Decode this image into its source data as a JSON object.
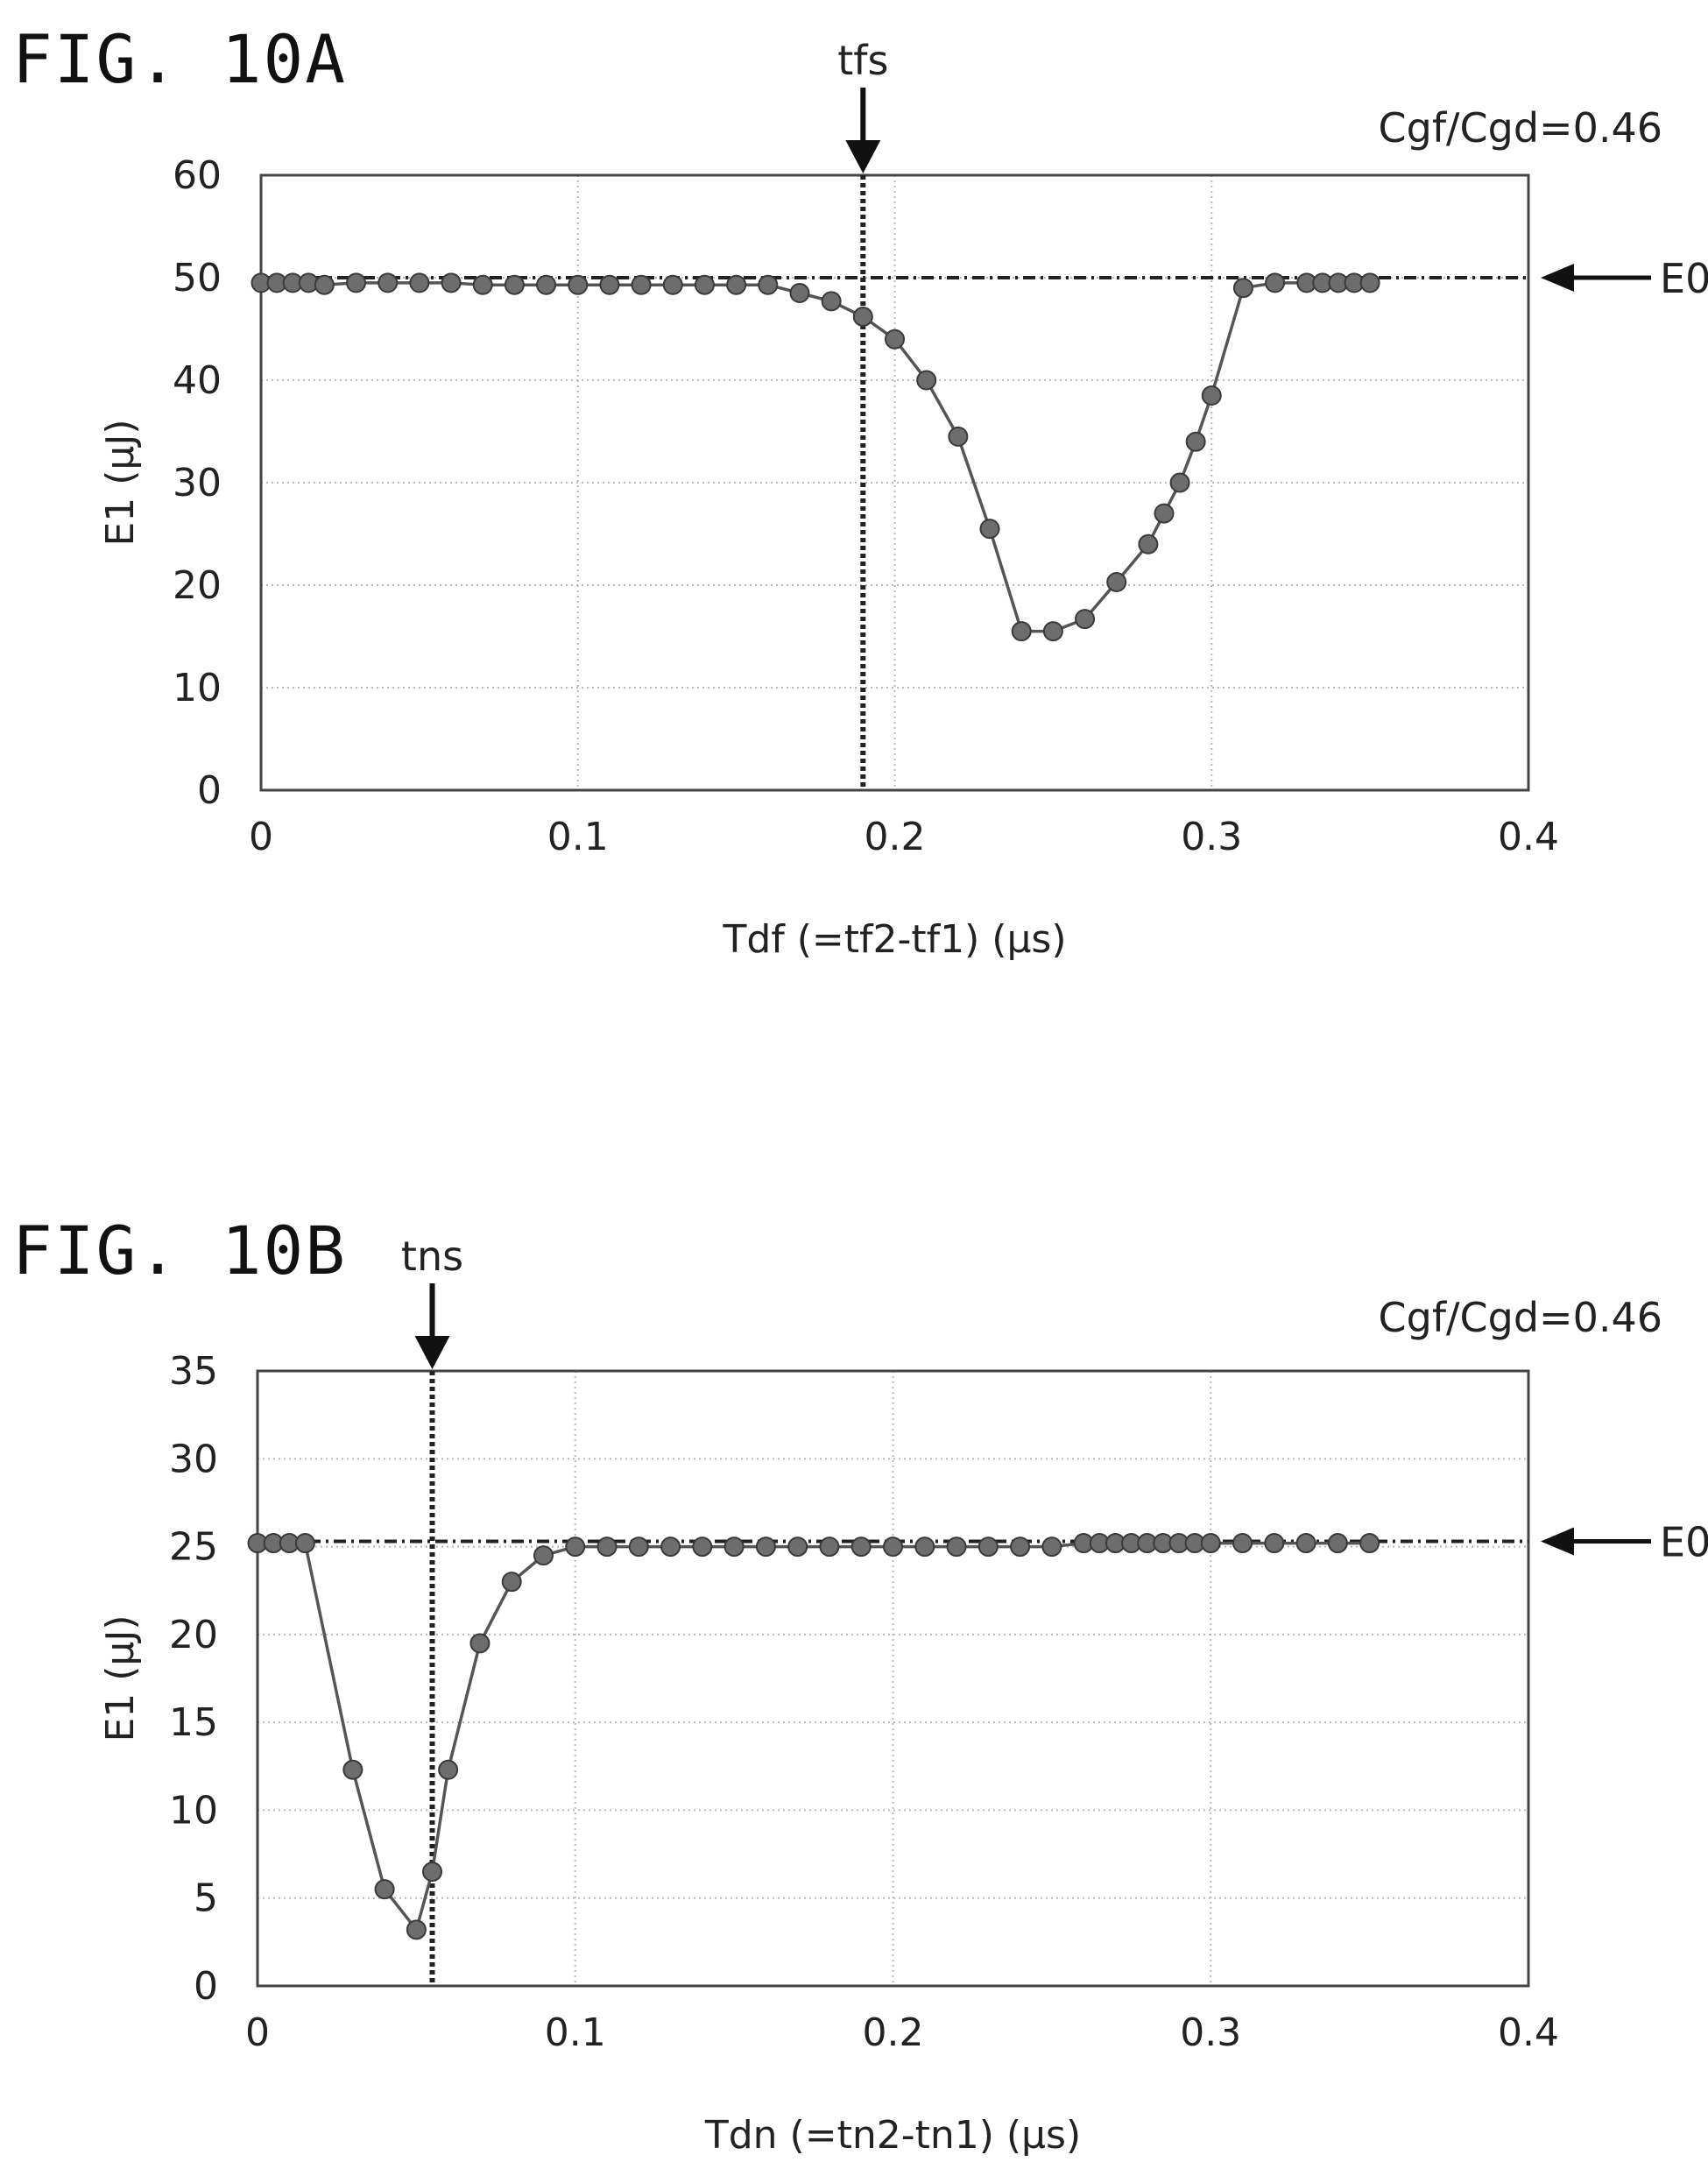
{
  "figures": [
    {
      "label": "FIG. 10A",
      "chart_data": {
        "type": "line",
        "title": "",
        "xlabel": "Tdf (=tf2-tf1) (μs)",
        "ylabel": "E1 (μJ)",
        "xlim": [
          0,
          0.4
        ],
        "ylim": [
          0,
          60
        ],
        "xticks": [
          "0",
          "0.1",
          "0.2",
          "0.3",
          "0.4"
        ],
        "yticks": [
          "0",
          "10",
          "20",
          "30",
          "40",
          "50",
          "60"
        ],
        "grid": true,
        "annotation": "Cgf/Cgd=0.46",
        "vline": {
          "label": "tfs",
          "x": 0.19
        },
        "hline": {
          "label": "E0",
          "y": 50
        },
        "series": [
          {
            "x": [
              0.0,
              0.005,
              0.01,
              0.015,
              0.02,
              0.03,
              0.04,
              0.05,
              0.06,
              0.07,
              0.08,
              0.09,
              0.1,
              0.11,
              0.12,
              0.13,
              0.14,
              0.15,
              0.16,
              0.17,
              0.18,
              0.19,
              0.2,
              0.21,
              0.22,
              0.23,
              0.24,
              0.25,
              0.26,
              0.27,
              0.28,
              0.285,
              0.29,
              0.295,
              0.3,
              0.31,
              0.32,
              0.33,
              0.335,
              0.34,
              0.345,
              0.35
            ],
            "y": [
              49.5,
              49.5,
              49.5,
              49.5,
              49.3,
              49.5,
              49.5,
              49.5,
              49.5,
              49.3,
              49.3,
              49.3,
              49.3,
              49.3,
              49.3,
              49.3,
              49.3,
              49.3,
              49.3,
              48.5,
              47.7,
              46.2,
              44.0,
              40.0,
              34.5,
              25.5,
              15.5,
              15.5,
              16.7,
              20.3,
              24.0,
              27.0,
              30.0,
              34.0,
              38.5,
              49.0,
              49.5,
              49.5,
              49.5,
              49.5,
              49.5,
              49.5
            ]
          }
        ]
      }
    },
    {
      "label": "FIG. 10B",
      "chart_data": {
        "type": "line",
        "title": "",
        "xlabel": "Tdn (=tn2-tn1) (μs)",
        "ylabel": "E1 (μJ)",
        "xlim": [
          0,
          0.4
        ],
        "ylim": [
          0,
          35
        ],
        "xticks": [
          "0",
          "0.1",
          "0.2",
          "0.3",
          "0.4"
        ],
        "yticks": [
          "0",
          "5",
          "10",
          "15",
          "20",
          "25",
          "30",
          "35"
        ],
        "grid": true,
        "annotation": "Cgf/Cgd=0.46",
        "vline": {
          "label": "tns",
          "x": 0.055
        },
        "hline": {
          "label": "E0",
          "y": 25.3
        },
        "series": [
          {
            "x": [
              0.0,
              0.005,
              0.01,
              0.015,
              0.03,
              0.04,
              0.05,
              0.055,
              0.06,
              0.07,
              0.08,
              0.09,
              0.1,
              0.11,
              0.12,
              0.13,
              0.14,
              0.15,
              0.16,
              0.17,
              0.18,
              0.19,
              0.2,
              0.21,
              0.22,
              0.23,
              0.24,
              0.25,
              0.26,
              0.265,
              0.27,
              0.275,
              0.28,
              0.285,
              0.29,
              0.295,
              0.3,
              0.31,
              0.32,
              0.33,
              0.34,
              0.35
            ],
            "y": [
              25.2,
              25.2,
              25.2,
              25.2,
              12.3,
              5.5,
              3.2,
              6.5,
              12.3,
              19.5,
              23.0,
              24.5,
              25.0,
              25.0,
              25.0,
              25.0,
              25.0,
              25.0,
              25.0,
              25.0,
              25.0,
              25.0,
              25.0,
              25.0,
              25.0,
              25.0,
              25.0,
              25.0,
              25.2,
              25.2,
              25.2,
              25.2,
              25.2,
              25.2,
              25.2,
              25.2,
              25.2,
              25.2,
              25.2,
              25.2,
              25.2,
              25.2
            ]
          }
        ]
      }
    }
  ]
}
